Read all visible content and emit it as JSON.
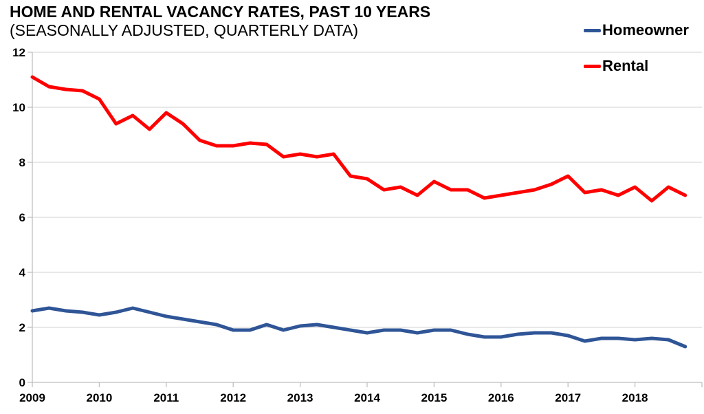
{
  "header": {
    "title": "HOME AND RENTAL VACANCY RATES, PAST 10 YEARS",
    "subtitle": "(SEASONALLY ADJUSTED, QUARTERLY DATA)"
  },
  "legend": {
    "position": "top-right",
    "items": [
      {
        "label": "Homeowner",
        "color": "#2F5597"
      },
      {
        "label": "Rental",
        "color": "#FF0000"
      }
    ]
  },
  "chart_data": {
    "type": "line",
    "title": "HOME AND RENTAL VACANCY RATES, PAST 10 YEARS",
    "subtitle": "(SEASONALLY ADJUSTED, QUARTERLY DATA)",
    "x_unit": "quarter",
    "x_start": "2009 Q1",
    "x_end": "2018 Q4",
    "year_labels": [
      "2009",
      "2010",
      "2011",
      "2012",
      "2013",
      "2014",
      "2015",
      "2016",
      "2017",
      "2018"
    ],
    "ylim": [
      0,
      12
    ],
    "ytick_step": 2,
    "ytick_labels": [
      "0",
      "2",
      "4",
      "6",
      "8",
      "10",
      "12"
    ],
    "grid": "horizontal",
    "legend_position": "top-right",
    "series": [
      {
        "name": "Homeowner",
        "color": "#2F5597",
        "values": [
          2.6,
          2.7,
          2.6,
          2.55,
          2.45,
          2.55,
          2.7,
          2.55,
          2.4,
          2.3,
          2.2,
          2.1,
          1.9,
          1.9,
          2.1,
          1.9,
          2.05,
          2.1,
          2.0,
          1.9,
          1.8,
          1.9,
          1.9,
          1.8,
          1.9,
          1.9,
          1.75,
          1.65,
          1.65,
          1.75,
          1.8,
          1.8,
          1.7,
          1.5,
          1.6,
          1.6,
          1.55,
          1.6,
          1.55,
          1.3
        ]
      },
      {
        "name": "Rental",
        "color": "#FF0000",
        "values": [
          11.1,
          10.75,
          10.65,
          10.6,
          10.3,
          9.4,
          9.7,
          9.2,
          9.8,
          9.4,
          8.8,
          8.6,
          8.6,
          8.7,
          8.65,
          8.2,
          8.3,
          8.2,
          8.3,
          7.5,
          7.4,
          7.0,
          7.1,
          6.8,
          7.3,
          7.0,
          7.0,
          6.7,
          6.8,
          6.9,
          7.0,
          7.2,
          7.5,
          6.9,
          7.0,
          6.8,
          7.1,
          6.6,
          7.1,
          6.8
        ]
      }
    ],
    "colors": {
      "gridline": "#D9D9D9",
      "axis": "#BFBFBF",
      "tick_label": "#000000",
      "background": "#FFFFFF"
    }
  }
}
